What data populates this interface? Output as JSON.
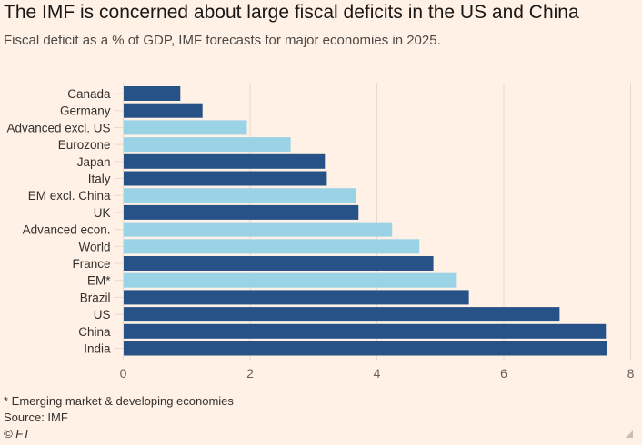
{
  "header": {
    "title": "The IMF is concerned about large fiscal deficits in the US and China",
    "subtitle": "Fiscal deficit as a % of GDP, IMF forecasts for major economies in 2025."
  },
  "chart_data": {
    "type": "bar",
    "orientation": "horizontal",
    "title": "The IMF is concerned about large fiscal deficits in the US and China",
    "subtitle": "Fiscal deficit as a % of GDP, IMF forecasts for major economies in 2025.",
    "xlabel": "",
    "ylabel": "",
    "xlim": [
      0,
      8
    ],
    "xticks": [
      0,
      2,
      4,
      6,
      8
    ],
    "grid": true,
    "categories": [
      "Canada",
      "Germany",
      "Advanced excl. US",
      "Eurozone",
      "Japan",
      "Italy",
      "EM excl. China",
      "UK",
      "Advanced econ.",
      "World",
      "France",
      "EM*",
      "Brazil",
      "US",
      "China",
      "India"
    ],
    "values": [
      0.9,
      1.25,
      1.95,
      2.64,
      3.18,
      3.21,
      3.67,
      3.71,
      4.24,
      4.67,
      4.89,
      5.26,
      5.45,
      6.88,
      7.61,
      7.63
    ],
    "groups": [
      "country",
      "country",
      "aggregate",
      "aggregate",
      "country",
      "country",
      "aggregate",
      "country",
      "aggregate",
      "aggregate",
      "country",
      "aggregate",
      "country",
      "country",
      "country",
      "country"
    ],
    "colors": {
      "country": "#265287",
      "aggregate": "#9bd3e6",
      "grid": "#e6d9ce",
      "tick": "#66605c"
    }
  },
  "footer": {
    "note": "* Emerging market & developing economies",
    "source": "Source: IMF",
    "credit": "© FT"
  }
}
